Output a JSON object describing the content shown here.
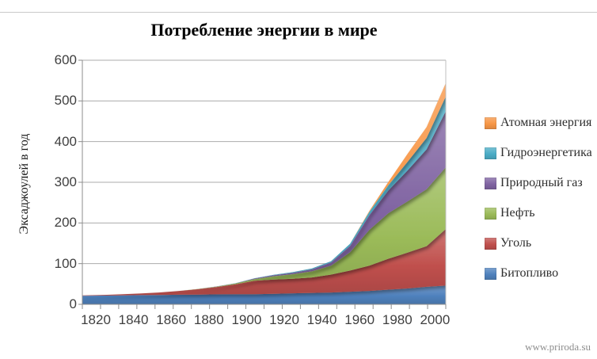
{
  "title": "Потребление энергии в мире",
  "y_axis_title": "Эксаджоулей в год",
  "watermark": "www.priroda.su",
  "chart_data": {
    "type": "area",
    "stacked": true,
    "title": "Потребление энергии в мире",
    "xlabel": "",
    "ylabel": "Эксаджоулей в год",
    "ylim": [
      0,
      600
    ],
    "y_ticks": [
      0,
      100,
      200,
      300,
      400,
      500,
      600
    ],
    "x_tick_labels": [
      "1820",
      "1840",
      "1860",
      "1880",
      "1900",
      "1920",
      "1940",
      "1960",
      "1980",
      "2000"
    ],
    "grid": true,
    "legend_position": "right",
    "categories": [
      1820,
      1830,
      1840,
      1850,
      1860,
      1870,
      1880,
      1890,
      1900,
      1910,
      1920,
      1930,
      1940,
      1950,
      1960,
      1970,
      1980,
      1990,
      2000,
      2010
    ],
    "series": [
      {
        "key": "biofuel",
        "name": "Битопливо",
        "color": "#4F81BD",
        "values": [
          21,
          21.5,
          22,
          22.5,
          23,
          23.5,
          24,
          24.5,
          25,
          25,
          26,
          27,
          28,
          29,
          31,
          33,
          36,
          39,
          43,
          46
        ]
      },
      {
        "key": "coal",
        "name": "Уголь",
        "color": "#C0504D",
        "values": [
          1,
          1.5,
          2.5,
          4,
          6,
          9,
          13,
          18,
          24,
          33,
          35,
          36,
          38,
          44,
          52,
          62,
          76,
          88,
          100,
          139
        ]
      },
      {
        "key": "oil",
        "name": "Нефть",
        "color": "#9BBB59",
        "values": [
          0,
          0,
          0,
          0,
          0,
          0.2,
          0.5,
          1,
          2,
          4,
          8,
          11,
          15,
          22,
          45,
          88,
          112,
          126,
          140,
          152
        ]
      },
      {
        "key": "gas",
        "name": "Природный газ",
        "color": "#8064A2",
        "values": [
          0,
          0,
          0,
          0,
          0,
          0,
          0.1,
          0.3,
          0.5,
          1.5,
          2.5,
          3.5,
          5,
          8,
          16,
          36,
          56,
          76,
          98,
          138
        ]
      },
      {
        "key": "hydro",
        "name": "Гидроэнергетика",
        "color": "#4BACC6",
        "values": [
          0,
          0,
          0,
          0,
          0,
          0,
          0,
          0.1,
          0.3,
          0.5,
          1,
          1.5,
          2,
          3,
          5,
          8,
          13,
          21,
          28,
          36
        ]
      },
      {
        "key": "nuclear",
        "name": "Атомная энергия",
        "color": "#F79646",
        "values": [
          0,
          0,
          0,
          0,
          0,
          0,
          0,
          0,
          0,
          0,
          0,
          0,
          0,
          0,
          0,
          2,
          8,
          20,
          27,
          33
        ]
      }
    ]
  }
}
